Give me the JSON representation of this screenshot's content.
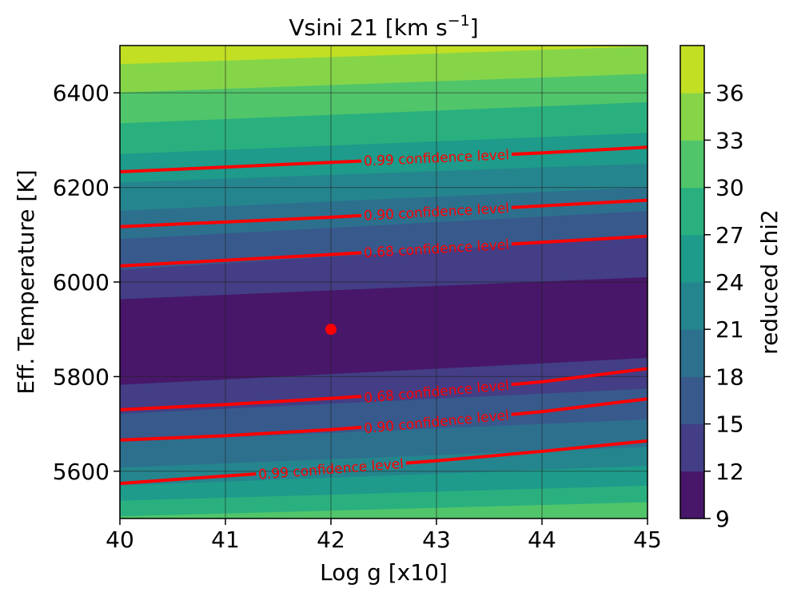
{
  "chart_data": {
    "type": "heatmap",
    "title_main": "Vsini 21 [km s",
    "title_sup": "−1",
    "title_end": "]",
    "xlabel": "Log g [x10]",
    "ylabel": "Eff. Temperature [K]",
    "xlim": [
      40,
      45
    ],
    "ylim": [
      5500,
      6500
    ],
    "x_ticks": [
      "40",
      "41",
      "42",
      "43",
      "44",
      "45"
    ],
    "y_ticks": [
      "5600",
      "5800",
      "6000",
      "6200",
      "6400"
    ],
    "grid": true,
    "colorbar": {
      "label": "reduced chi2",
      "levels": [
        9,
        12,
        15,
        18,
        21,
        24,
        27,
        30,
        33,
        36
      ],
      "tick_labels": [
        "9",
        "12",
        "15",
        "18",
        "21",
        "24",
        "27",
        "30",
        "33",
        "36"
      ],
      "colors": [
        "#481769",
        "#433e85",
        "#38598c",
        "#2d708e",
        "#25858e",
        "#1e9b8a",
        "#2ab07f",
        "#51c56a",
        "#86d549",
        "#c2df23"
      ]
    },
    "contour_bands": [
      {
        "level": 9,
        "low": [
          5783,
          5840
        ],
        "high": [
          5963,
          6010
        ]
      },
      {
        "level": 12,
        "low": [
          5722,
          5775
        ],
        "high": [
          6025,
          6095
        ]
      },
      {
        "level": 15,
        "low": [
          5662,
          5710
        ],
        "high": [
          6090,
          6150
        ]
      },
      {
        "level": 18,
        "low": [
          5608,
          5652
        ],
        "high": [
          6150,
          6200
        ]
      },
      {
        "level": 21,
        "low": [
          5570,
          5612
        ],
        "high": [
          6210,
          6250
        ]
      },
      {
        "level": 24,
        "low": [
          5538,
          5570
        ],
        "high": [
          6270,
          6315
        ]
      },
      {
        "level": 27,
        "low": [
          5505,
          5535
        ],
        "high": [
          6335,
          6380
        ]
      },
      {
        "level": 30,
        "low": [
          5470,
          5500
        ],
        "high": [
          6400,
          6440
        ]
      },
      {
        "level": 33,
        "low": [
          5400,
          5470
        ],
        "high": [
          6460,
          6498
        ]
      }
    ],
    "best_fit": {
      "x": 42,
      "y": 5900
    },
    "confidence_lines": [
      {
        "label": "0.99 confidence level",
        "x": [
          40,
          41,
          42,
          43,
          44,
          45
        ],
        "y": [
          6233,
          6243,
          6253,
          6263,
          6273,
          6285
        ],
        "label_x": 43.0
      },
      {
        "label": "0.90 confidence level",
        "x": [
          40,
          41,
          42,
          43,
          44,
          45
        ],
        "y": [
          6117,
          6127,
          6137,
          6149,
          6161,
          6173
        ],
        "label_x": 43.0
      },
      {
        "label": "0.68 confidence level",
        "x": [
          40,
          41,
          42,
          43,
          44,
          45
        ],
        "y": [
          6034,
          6046,
          6058,
          6071,
          6084,
          6097
        ],
        "label_x": 43.0
      },
      {
        "label": "0.68 confidence level",
        "x": [
          40,
          41,
          42,
          43,
          44,
          45
        ],
        "y": [
          5730,
          5741,
          5754,
          5769,
          5789,
          5817
        ],
        "label_x": 43.0
      },
      {
        "label": "0.90 confidence level",
        "x": [
          40,
          41,
          42,
          43,
          44,
          45
        ],
        "y": [
          5666,
          5675,
          5688,
          5705,
          5726,
          5753
        ],
        "label_x": 43.0
      },
      {
        "label": "0.99 confidence level",
        "x": [
          40,
          41,
          42,
          43,
          44,
          45
        ],
        "y": [
          5574,
          5590,
          5605,
          5622,
          5642,
          5664
        ],
        "label_x": 42.0
      }
    ]
  }
}
